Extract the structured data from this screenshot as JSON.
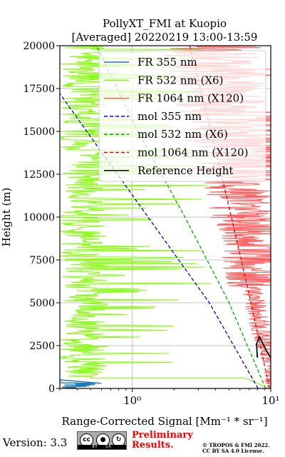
{
  "chart_data": {
    "type": "line",
    "title_line1": "PollyXT_FMI at Kuopio",
    "title_line2": "[Averaged] 20220219 13:00-13:59",
    "xlabel": "Range-Corrected Signal [Mm⁻¹ * sr⁻¹]",
    "ylabel": "Height (m)",
    "xscale": "log",
    "xlim": [
      0.3,
      10
    ],
    "ylim": [
      0,
      20000
    ],
    "y_ticks": [
      "0",
      "2500",
      "5000",
      "7500",
      "10000",
      "12500",
      "15000",
      "17500",
      "20000"
    ],
    "x_ticks": [
      "10⁰",
      "10¹"
    ],
    "grid": true,
    "legend_position": "top-right",
    "legend": [
      {
        "label": "FR 355 nm",
        "color": "#1f77b4",
        "style": "solid"
      },
      {
        "label": "FR 532 nm (X6)",
        "color": "#80ff00",
        "style": "solid"
      },
      {
        "label": "FR 1064 nm (X120)",
        "color": "#ff6060",
        "style": "solid"
      },
      {
        "label": "mol 355 nm",
        "color": "#0000cc",
        "style": "dashed"
      },
      {
        "label": "mol 532 nm (X6)",
        "color": "#00aa00",
        "style": "dashed"
      },
      {
        "label": "mol 1064 nm (X120)",
        "color": "#ee0000",
        "style": "dashed"
      },
      {
        "label": "Reference Height",
        "color": "#000000",
        "style": "solid"
      }
    ],
    "series": [
      {
        "name": "mol 355 nm",
        "x": [
          8.1,
          3.6,
          1.3,
          0.3
        ],
        "y": [
          0,
          5000,
          10000,
          17200
        ]
      },
      {
        "name": "mol 532 nm (X6)",
        "x": [
          9.2,
          5.0,
          2.4,
          1.1,
          0.55
        ],
        "y": [
          0,
          5000,
          10000,
          15000,
          20000
        ]
      },
      {
        "name": "mol 1064 nm (X120)",
        "x": [
          9.8,
          7.2,
          5.2,
          3.7,
          2.6
        ],
        "y": [
          0,
          5000,
          10000,
          15000,
          20000
        ]
      },
      {
        "name": "Reference Height",
        "x": [
          8.0,
          7.9,
          8.3,
          9.3,
          10.0
        ],
        "y": [
          1800,
          2600,
          3000,
          2200,
          1800
        ]
      }
    ]
  },
  "footer": {
    "version": "Version: 3.3",
    "cc_by": "BY",
    "cc_sa": "SA",
    "preliminary_line1": "Preliminary",
    "preliminary_line2": "Results.",
    "copyright_line1": "© TROPOS & FMI 2022.",
    "copyright_line2": "CC BY SA 4.0 License."
  }
}
